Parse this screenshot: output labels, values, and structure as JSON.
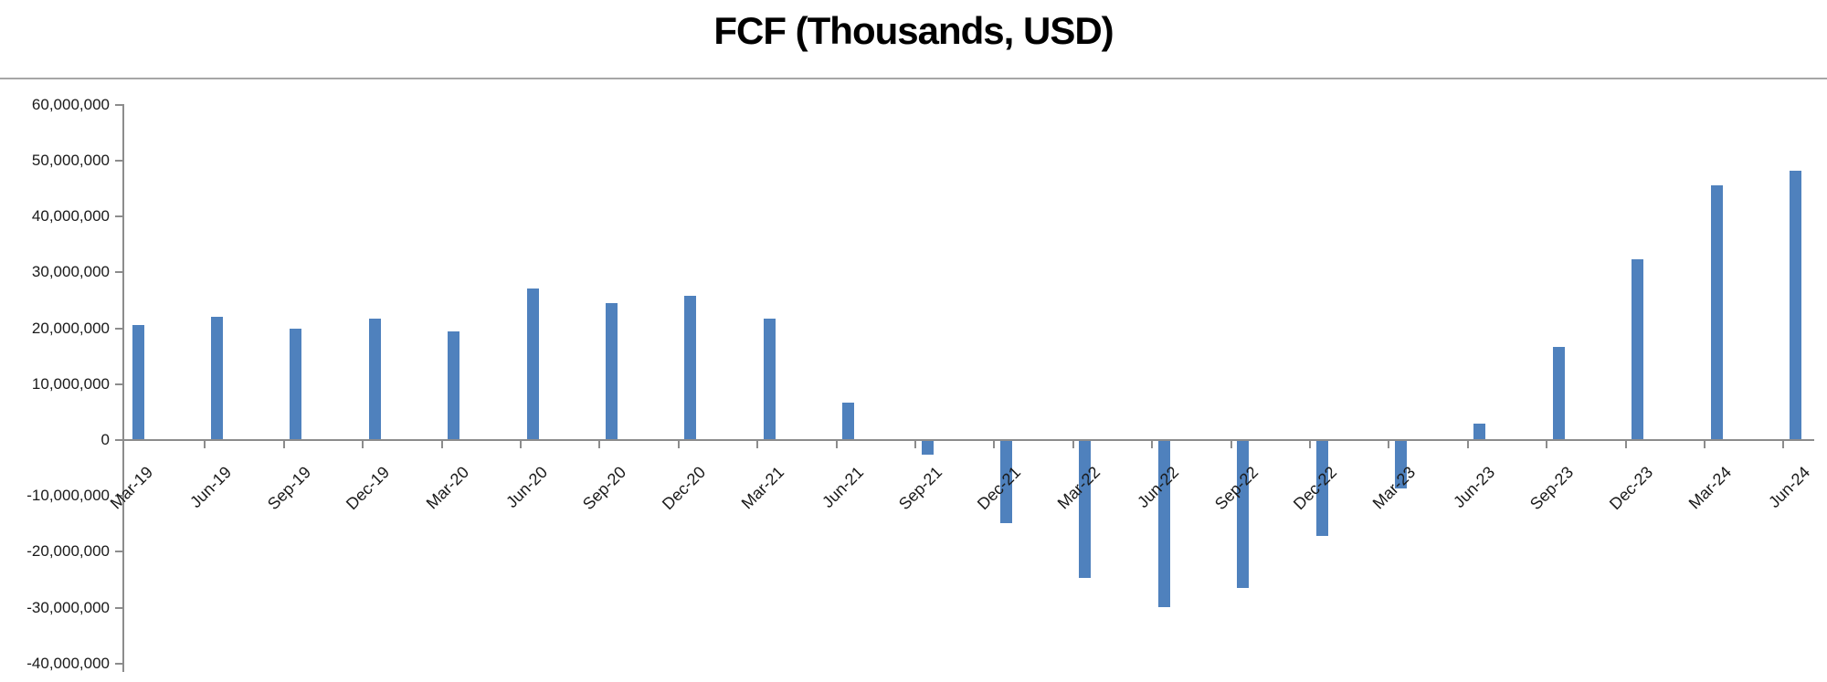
{
  "chart_data": {
    "type": "bar",
    "title": "FCF (Thousands, USD)",
    "categories": [
      "Mar-19",
      "Jun-19",
      "Sep-19",
      "Dec-19",
      "Mar-20",
      "Jun-20",
      "Sep-20",
      "Dec-20",
      "Mar-21",
      "Jun-21",
      "Sep-21",
      "Dec-21",
      "Mar-22",
      "Jun-22",
      "Sep-22",
      "Dec-22",
      "Mar-23",
      "Jun-23",
      "Sep-23",
      "Dec-23",
      "Mar-24",
      "Jun-24"
    ],
    "values": [
      20600000,
      22000000,
      19900000,
      21700000,
      19400000,
      27100000,
      24500000,
      25800000,
      21700000,
      6700000,
      -2600000,
      -14900000,
      -24700000,
      -29900000,
      -26500000,
      -17200000,
      -8700000,
      2900000,
      16700000,
      32400000,
      45600000,
      48200000
    ],
    "xlabel": "",
    "ylabel": "",
    "ylim": [
      -40000000,
      60000000
    ],
    "ytick_step": 10000000,
    "ytick_labels": [
      "60,000,000",
      "50,000,000",
      "40,000,000",
      "30,000,000",
      "20,000,000",
      "10,000,000",
      "0",
      "-10,000,000",
      "-20,000,000",
      "-30,000,000",
      "-40,000,000"
    ],
    "grid": false,
    "legend_position": "none",
    "bar_color": "#4F81BD",
    "axis_color": "#8C8C8C",
    "rule_color": "#A6A6A6",
    "label_color": "#1A1A1A",
    "title_color": "#000000"
  }
}
